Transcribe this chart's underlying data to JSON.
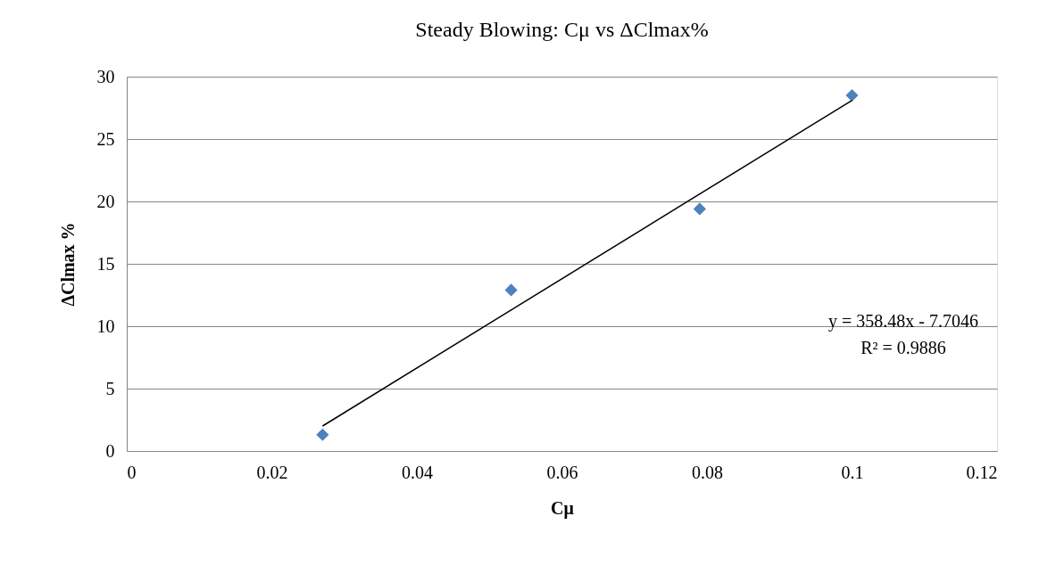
{
  "chart_data": {
    "type": "scatter",
    "title": "Steady Blowing: Cμ vs ΔClmax%",
    "xlabel": "Cμ",
    "ylabel": "ΔClmax %",
    "series": [
      {
        "color": "#4f81bd",
        "marker": "diamond",
        "x": [
          0.027,
          0.053,
          0.079,
          0.1
        ],
        "values": [
          1.3,
          12.9,
          19.4,
          28.5
        ]
      },
      {
        "type": "line",
        "color": "#000000",
        "marker": "none",
        "x": [
          0.027,
          0.1
        ],
        "values": [
          2.0,
          28.1
        ]
      }
    ],
    "annotations": [
      "y = 358.48x - 7.7046",
      "R² = 0.9886"
    ],
    "xlim": [
      0,
      0.12
    ],
    "xticks": [
      0,
      0.02,
      0.04,
      0.06,
      0.08,
      0.1,
      0.12
    ],
    "ylim": [
      0,
      30
    ],
    "yticks": [
      0,
      5,
      10,
      15,
      20,
      25,
      30
    ],
    "grid": "y"
  }
}
